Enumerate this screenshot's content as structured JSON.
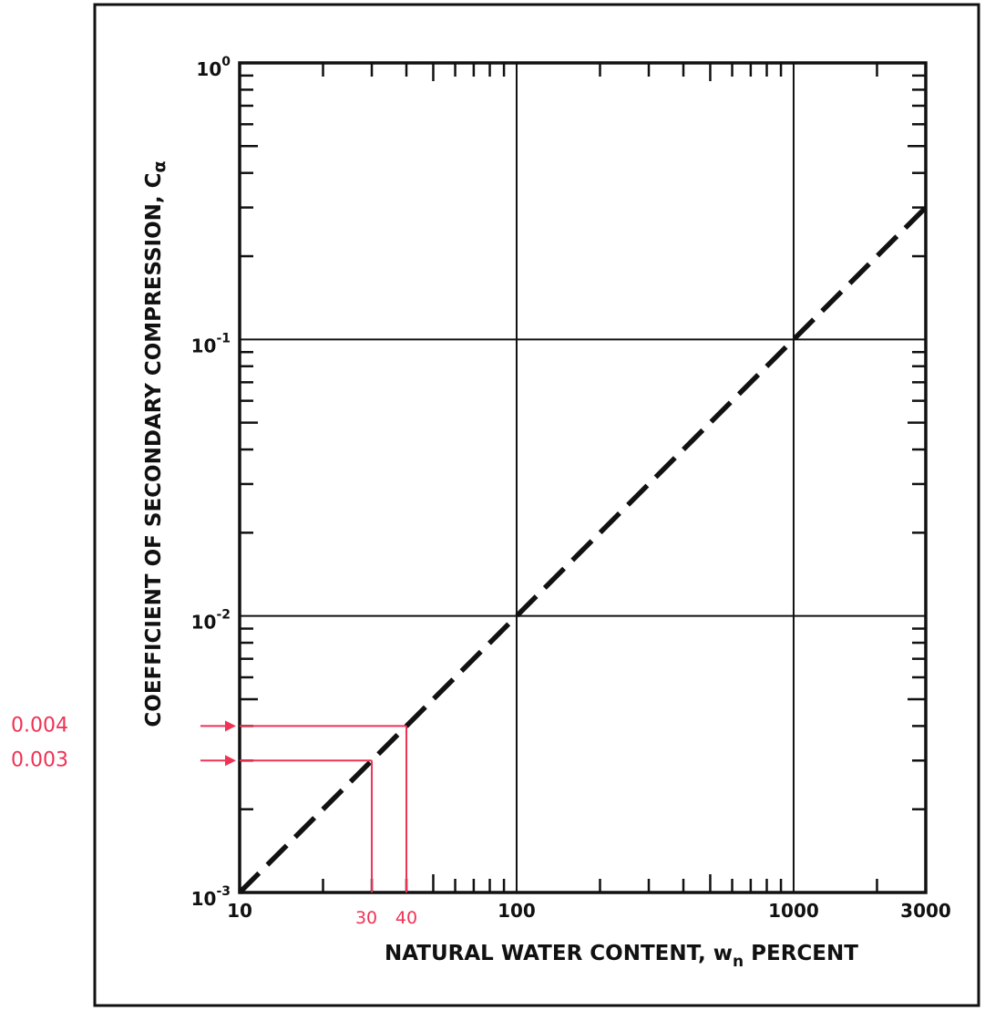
{
  "chart_data": {
    "type": "line",
    "xscale": "log",
    "yscale": "log",
    "xlim": [
      10,
      3000
    ],
    "ylim": [
      0.001,
      1
    ],
    "xlabel": "NATURAL  WATER CONTENT, w_n PERCENT",
    "xlabel_main": "NATURAL  WATER CONTENT, w",
    "xlabel_sub": "n",
    "xlabel_tail": " PERCENT",
    "ylabel": "COEFFICIENT OF SECONDARY COMPRESSION, Cα",
    "ylabel_main": "COEFFICIENT OF SECONDARY COMPRESSION, C",
    "ylabel_sub": "α",
    "grid": true,
    "x_tick_labels": [
      {
        "value": 10,
        "label": "10"
      },
      {
        "value": 100,
        "label": "100"
      },
      {
        "value": 1000,
        "label": "1000"
      },
      {
        "value": 3000,
        "label": "3000"
      }
    ],
    "y_tick_labels": [
      {
        "value": 1,
        "base": "10",
        "exp": "0"
      },
      {
        "value": 0.1,
        "base": "10",
        "exp": "-1"
      },
      {
        "value": 0.01,
        "base": "10",
        "exp": "-2"
      },
      {
        "value": 0.001,
        "base": "10",
        "exp": "-3"
      }
    ],
    "series": [
      {
        "style": "dashed",
        "color": "#111111",
        "x": [
          10,
          3000
        ],
        "y": [
          0.001,
          0.3
        ]
      }
    ],
    "annotations": {
      "color": "#ee3355",
      "points": [
        {
          "x": 30,
          "y": 0.003,
          "x_label": "30",
          "y_label": "0.003"
        },
        {
          "x": 40,
          "y": 0.004,
          "x_label": "40",
          "y_label": "0.004"
        }
      ]
    }
  }
}
